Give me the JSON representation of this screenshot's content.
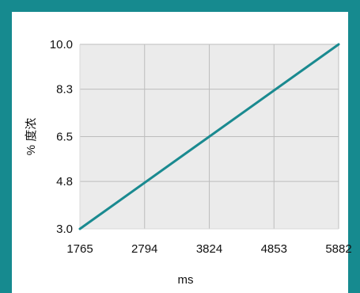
{
  "colors": {
    "frame": "#168a8f",
    "plot_background": "#ebebeb",
    "grid": "#bdbdbd",
    "line": "#1a8a90"
  },
  "chart_data": {
    "type": "line",
    "title": "",
    "xlabel": "ms",
    "ylabel": "% 度浓",
    "x_ticks": [
      "1765",
      "2794",
      "3824",
      "4853",
      "5882"
    ],
    "y_ticks": [
      "3.0",
      "4.8",
      "6.5",
      "8.3",
      "10.0"
    ],
    "xlim": [
      1765,
      5882
    ],
    "ylim": [
      3.0,
      10.0
    ],
    "grid": true,
    "series": [
      {
        "x": [
          1765,
          5882
        ],
        "y": [
          3.0,
          10.0
        ]
      }
    ]
  }
}
